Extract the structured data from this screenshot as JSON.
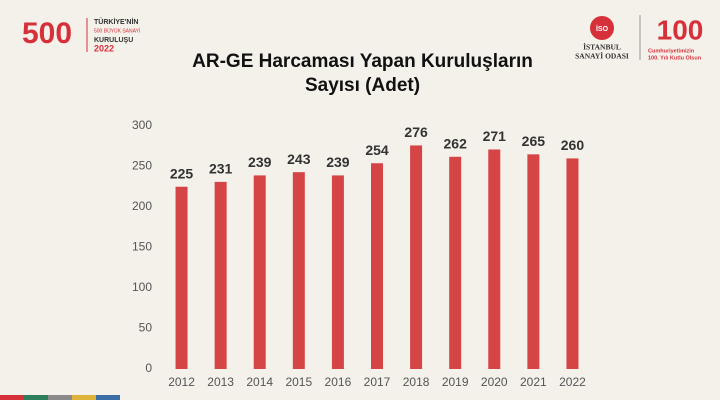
{
  "header": {
    "left_logo_number": "500",
    "left_logo_lines": [
      "TÜRKİYE'NİN",
      "500 BÜYÜK SANAYİ",
      "KURULUŞU",
      "2022"
    ],
    "right_logo_badge": "İSO",
    "right_logo_lines": [
      "İSTANBUL",
      "SANAYİ ODASI"
    ],
    "anniversary_number": "100",
    "anniversary_lines": [
      "Cumhuriyetimizin",
      "100. Yılı Kutlu Olsun"
    ]
  },
  "chart_data": {
    "type": "bar",
    "title": "AR-GE Harcaması Yapan Kuruluşların Sayısı (Adet)",
    "categories": [
      "2012",
      "2013",
      "2014",
      "2015",
      "2016",
      "2017",
      "2018",
      "2019",
      "2020",
      "2021",
      "2022"
    ],
    "values": [
      225,
      231,
      239,
      243,
      239,
      254,
      276,
      262,
      271,
      265,
      260
    ],
    "color": "#d64545",
    "ylim": [
      0,
      300
    ],
    "yticks": [
      0,
      50,
      100,
      150,
      200,
      250,
      300
    ],
    "grid": false
  }
}
